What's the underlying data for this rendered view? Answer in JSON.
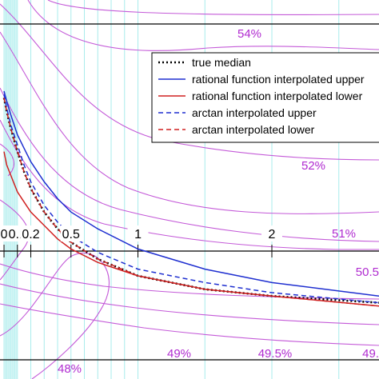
{
  "chart_data": {
    "type": "line",
    "x_axis": {
      "tick_labels": [
        "0",
        "0.1",
        "0.2",
        "0.5",
        "1",
        "2"
      ],
      "tick_values": [
        0.0,
        0.1,
        0.2,
        0.5,
        1,
        2
      ],
      "range": [
        -0.03,
        2.8
      ]
    },
    "y_range": [
      0.0,
      1.0
    ],
    "grid": true,
    "legend_placement": "top-right",
    "contour_labels": [
      "54%",
      "52%",
      "51%",
      "50.5",
      "48%",
      "49%",
      "49.5%",
      "49."
    ],
    "series": [
      {
        "name": "true median",
        "style": "dotted",
        "color": "#000000",
        "x": [
          0.0,
          0.02,
          0.05,
          0.1,
          0.15,
          0.2,
          0.3,
          0.4,
          0.5,
          0.7,
          1.0,
          1.5,
          2.0,
          2.8
        ],
        "y": [
          0.78,
          0.74,
          0.69,
          0.62,
          0.56,
          0.51,
          0.44,
          0.39,
          0.35,
          0.3,
          0.25,
          0.21,
          0.19,
          0.17
        ]
      },
      {
        "name": "rational function interpolated upper",
        "style": "solid",
        "color": "#1f2fd0",
        "x": [
          0.0,
          0.02,
          0.05,
          0.1,
          0.15,
          0.2,
          0.3,
          0.4,
          0.5,
          0.7,
          1.0,
          1.5,
          2.0,
          2.8
        ],
        "y": [
          0.8,
          0.77,
          0.73,
          0.67,
          0.63,
          0.59,
          0.53,
          0.48,
          0.44,
          0.39,
          0.33,
          0.27,
          0.23,
          0.19
        ]
      },
      {
        "name": "rational function interpolated lower",
        "style": "solid",
        "color": "#d02020",
        "x": [
          0.0,
          0.02,
          0.05,
          0.1,
          0.15,
          0.2,
          0.3,
          0.4,
          0.5,
          0.7,
          1.0,
          1.5,
          2.0,
          2.8
        ],
        "y": [
          0.62,
          0.58,
          0.55,
          0.5,
          0.47,
          0.44,
          0.4,
          0.36,
          0.33,
          0.29,
          0.25,
          0.21,
          0.19,
          0.16
        ]
      },
      {
        "name": "arctan interpolated upper",
        "style": "dashed",
        "color": "#1f2fd0",
        "x": [
          0.0,
          0.02,
          0.05,
          0.1,
          0.15,
          0.2,
          0.3,
          0.4,
          0.5,
          0.7,
          1.0,
          1.5,
          2.0,
          2.8
        ],
        "y": [
          0.79,
          0.75,
          0.7,
          0.64,
          0.58,
          0.53,
          0.46,
          0.41,
          0.37,
          0.32,
          0.27,
          0.23,
          0.2,
          0.17
        ]
      },
      {
        "name": "arctan interpolated lower",
        "style": "dashed",
        "color": "#d02020",
        "x": [
          0.0,
          0.02,
          0.05,
          0.1,
          0.15,
          0.2,
          0.3,
          0.4,
          0.5,
          0.7,
          1.0,
          1.5,
          2.0,
          2.8
        ],
        "y": [
          0.78,
          0.74,
          0.69,
          0.62,
          0.56,
          0.51,
          0.44,
          0.39,
          0.35,
          0.3,
          0.25,
          0.21,
          0.19,
          0.16
        ]
      }
    ]
  }
}
